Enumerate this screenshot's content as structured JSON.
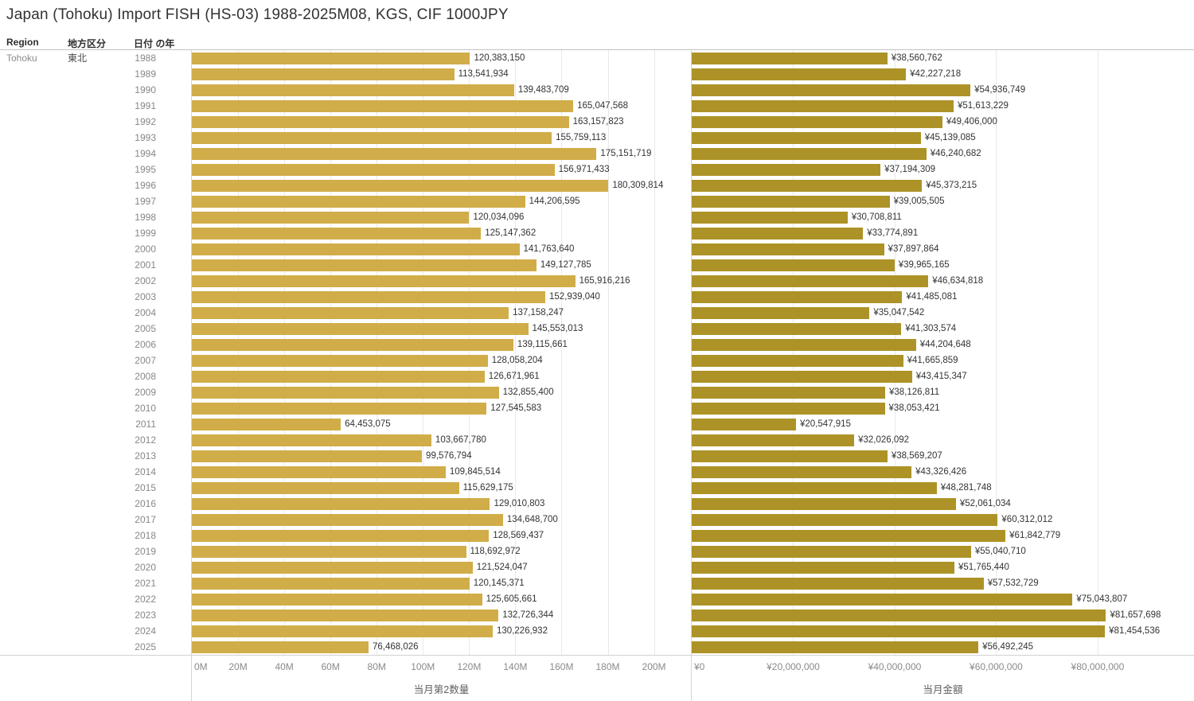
{
  "title": "Japan (Tohoku) Import FISH (HS-03) 1988-2025M08, KGS, CIF 1000JPY",
  "columns": {
    "region": "Region",
    "region_jp": "地方区分",
    "year": "日付 の年"
  },
  "row_header": {
    "region": "Tohoku",
    "region_jp": "東北"
  },
  "chart_data": [
    {
      "type": "bar",
      "orientation": "horizontal",
      "name": "quantity",
      "xlabel": "当月第2数量",
      "bar_color": "#d1ad49",
      "value_prefix": "",
      "tick_interval": 20000000,
      "xlim": [
        0,
        216000000
      ],
      "axis_ticks": [
        "0M",
        "20M",
        "40M",
        "60M",
        "80M",
        "100M",
        "120M",
        "140M",
        "160M",
        "180M",
        "200M"
      ],
      "categories": [
        1988,
        1989,
        1990,
        1991,
        1992,
        1993,
        1994,
        1995,
        1996,
        1997,
        1998,
        1999,
        2000,
        2001,
        2002,
        2003,
        2004,
        2005,
        2006,
        2007,
        2008,
        2009,
        2010,
        2011,
        2012,
        2013,
        2014,
        2015,
        2016,
        2017,
        2018,
        2019,
        2020,
        2021,
        2022,
        2023,
        2024,
        2025
      ],
      "values": [
        120383150,
        113541934,
        139483709,
        165047568,
        163157823,
        155759113,
        175151719,
        156971433,
        180309814,
        144206595,
        120034096,
        125147362,
        141763640,
        149127785,
        165916216,
        152939040,
        137158247,
        145553013,
        139115661,
        128058204,
        126671961,
        132855400,
        127545583,
        64453075,
        103667780,
        99576794,
        109845514,
        115629175,
        129010803,
        134648700,
        128569437,
        118692972,
        121524047,
        120145371,
        125605661,
        132726344,
        130226932,
        76468026
      ]
    },
    {
      "type": "bar",
      "orientation": "horizontal",
      "name": "amount",
      "xlabel": "当月金額",
      "bar_color": "#ad9327",
      "value_prefix": "¥",
      "tick_interval": 20000000,
      "xlim": [
        0,
        99000000
      ],
      "axis_ticks": [
        "¥0",
        "¥20,000,000",
        "¥40,000,000",
        "¥60,000,000",
        "¥80,000,000"
      ],
      "categories": [
        1988,
        1989,
        1990,
        1991,
        1992,
        1993,
        1994,
        1995,
        1996,
        1997,
        1998,
        1999,
        2000,
        2001,
        2002,
        2003,
        2004,
        2005,
        2006,
        2007,
        2008,
        2009,
        2010,
        2011,
        2012,
        2013,
        2014,
        2015,
        2016,
        2017,
        2018,
        2019,
        2020,
        2021,
        2022,
        2023,
        2024,
        2025
      ],
      "values": [
        38560762,
        42227218,
        54936749,
        51613229,
        49406000,
        45139085,
        46240682,
        37194309,
        45373215,
        39005505,
        30708811,
        33774891,
        37897864,
        39965165,
        46634818,
        41485081,
        35047542,
        41303574,
        44204648,
        41665859,
        43415347,
        38126811,
        38053421,
        20547915,
        32026092,
        38569207,
        43326426,
        48281748,
        52061034,
        60312012,
        61842779,
        55040710,
        51765440,
        57532729,
        75043807,
        81657698,
        81454536,
        56492245
      ]
    }
  ]
}
